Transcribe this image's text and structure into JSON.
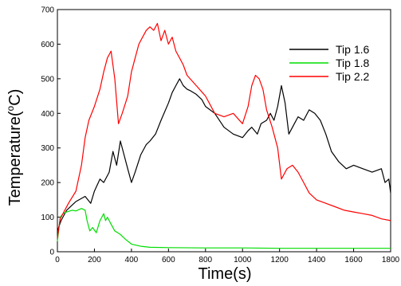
{
  "chart_data": {
    "type": "line",
    "xlabel": "Time(s)",
    "ylabel_main": "Temperature(",
    "ylabel_sup": "o",
    "ylabel_end": "C)",
    "xlim": [
      0,
      1800
    ],
    "ylim": [
      0,
      700
    ],
    "xticks": [
      0,
      200,
      400,
      600,
      800,
      1000,
      1200,
      1400,
      1600,
      1800
    ],
    "yticks": [
      0,
      100,
      200,
      300,
      400,
      500,
      600,
      700
    ],
    "grid": false,
    "legend": "top-right",
    "series": [
      {
        "name": "Tip 1.6",
        "color": "#000000",
        "x": [
          0,
          20,
          50,
          100,
          150,
          180,
          200,
          230,
          250,
          280,
          300,
          320,
          340,
          360,
          380,
          400,
          420,
          450,
          480,
          500,
          530,
          560,
          600,
          620,
          640,
          660,
          680,
          700,
          720,
          750,
          780,
          800,
          850,
          900,
          950,
          1000,
          1030,
          1050,
          1080,
          1100,
          1130,
          1150,
          1170,
          1190,
          1210,
          1230,
          1250,
          1280,
          1300,
          1330,
          1360,
          1390,
          1420,
          1450,
          1480,
          1520,
          1560,
          1600,
          1650,
          1700,
          1750,
          1770,
          1790,
          1800
        ],
        "y": [
          60,
          90,
          120,
          145,
          160,
          140,
          175,
          210,
          200,
          230,
          290,
          250,
          320,
          280,
          240,
          200,
          230,
          280,
          310,
          320,
          340,
          380,
          430,
          460,
          480,
          500,
          480,
          470,
          465,
          455,
          440,
          420,
          400,
          360,
          340,
          330,
          350,
          360,
          340,
          370,
          380,
          400,
          380,
          420,
          480,
          430,
          340,
          370,
          390,
          380,
          410,
          400,
          380,
          340,
          290,
          260,
          240,
          250,
          240,
          230,
          240,
          200,
          210,
          170
        ]
      },
      {
        "name": "Tip 1.8",
        "color": "#00dd00",
        "x": [
          0,
          15,
          30,
          50,
          80,
          100,
          130,
          150,
          160,
          175,
          190,
          210,
          230,
          250,
          260,
          270,
          290,
          310,
          340,
          370,
          400,
          450,
          500,
          600,
          800,
          1000,
          1200,
          1400,
          1600,
          1800
        ],
        "y": [
          30,
          100,
          110,
          115,
          120,
          118,
          125,
          120,
          90,
          60,
          70,
          55,
          90,
          110,
          90,
          100,
          80,
          60,
          50,
          35,
          22,
          16,
          13,
          12,
          11,
          11,
          10,
          10,
          10,
          10
        ]
      },
      {
        "name": "Tip 2.2",
        "color": "#ff0000",
        "x": [
          0,
          15,
          30,
          60,
          100,
          130,
          150,
          170,
          200,
          230,
          250,
          270,
          290,
          310,
          330,
          350,
          380,
          400,
          420,
          440,
          460,
          480,
          500,
          520,
          540,
          560,
          580,
          600,
          620,
          640,
          660,
          680,
          700,
          750,
          800,
          850,
          900,
          950,
          1000,
          1030,
          1050,
          1070,
          1090,
          1110,
          1130,
          1160,
          1190,
          1210,
          1240,
          1270,
          1300,
          1330,
          1360,
          1400,
          1450,
          1500,
          1550,
          1600,
          1650,
          1700,
          1750,
          1800
        ],
        "y": [
          40,
          95,
          110,
          140,
          175,
          250,
          330,
          380,
          420,
          470,
          520,
          560,
          580,
          500,
          370,
          400,
          450,
          520,
          560,
          600,
          620,
          640,
          650,
          640,
          660,
          610,
          640,
          600,
          620,
          580,
          560,
          540,
          510,
          480,
          450,
          400,
          390,
          400,
          370,
          420,
          480,
          510,
          500,
          470,
          410,
          360,
          300,
          210,
          240,
          250,
          230,
          200,
          170,
          150,
          140,
          130,
          120,
          115,
          110,
          105,
          95,
          90
        ]
      }
    ]
  }
}
